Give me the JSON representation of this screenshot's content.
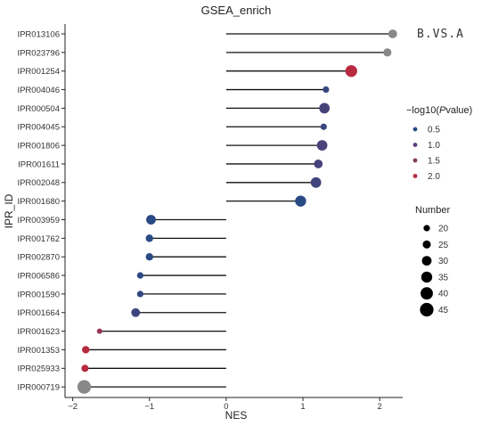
{
  "chart_data": {
    "type": "lollipop",
    "title": "GSEA_enrich",
    "xlabel": "NES",
    "ylabel": "IPR_ID",
    "group_label": "B.VS.A",
    "xlim": [
      -2.1,
      2.3
    ],
    "xticks": [
      -2,
      -1,
      0,
      1,
      2
    ],
    "xtick_labels": [
      "−2",
      "−1",
      "0",
      "1",
      "2"
    ],
    "categories": [
      "IPR013106",
      "IPR023796",
      "IPR001254",
      "IPR004046",
      "IPR000504",
      "IPR004045",
      "IPR001806",
      "IPR001611",
      "IPR002048",
      "IPR001680",
      "IPR003959",
      "IPR001762",
      "IPR002870",
      "IPR006586",
      "IPR001590",
      "IPR001664",
      "IPR001623",
      "IPR001353",
      "IPR025933",
      "IPR000719"
    ],
    "nes": [
      2.17,
      2.1,
      1.63,
      1.3,
      1.28,
      1.27,
      1.25,
      1.2,
      1.17,
      0.97,
      -0.98,
      -1.0,
      -1.0,
      -1.12,
      -1.12,
      -1.18,
      -1.65,
      -1.83,
      -1.84,
      -1.85
    ],
    "neg_log10_pvalue": [
      null,
      null,
      2.05,
      0.65,
      0.8,
      0.7,
      0.85,
      0.8,
      0.75,
      0.45,
      0.45,
      0.5,
      0.5,
      0.55,
      0.6,
      0.7,
      1.7,
      2.0,
      2.1,
      null
    ],
    "number": [
      27,
      25,
      38,
      20,
      33,
      20,
      33,
      27,
      33,
      35,
      30,
      23,
      23,
      20,
      20,
      27,
      17,
      23,
      22,
      45
    ],
    "na_color": "#888888",
    "color_legend": {
      "title_prefix": "−log10(",
      "title_italic": "P",
      "title_suffix": "value)",
      "values": [
        0.5,
        1.0,
        1.5,
        2.0
      ],
      "labels": [
        "0.5",
        "1.0",
        "1.5",
        "2.0"
      ],
      "colors": [
        "#2a4a86",
        "#583f73",
        "#81395c",
        "#b72a40"
      ]
    },
    "size_legend": {
      "title": "Number",
      "values": [
        20,
        25,
        30,
        35,
        40,
        45
      ],
      "labels": [
        "20",
        "25",
        "30",
        "35",
        "40",
        "45"
      ]
    },
    "grid": false,
    "legend_position": "right"
  }
}
